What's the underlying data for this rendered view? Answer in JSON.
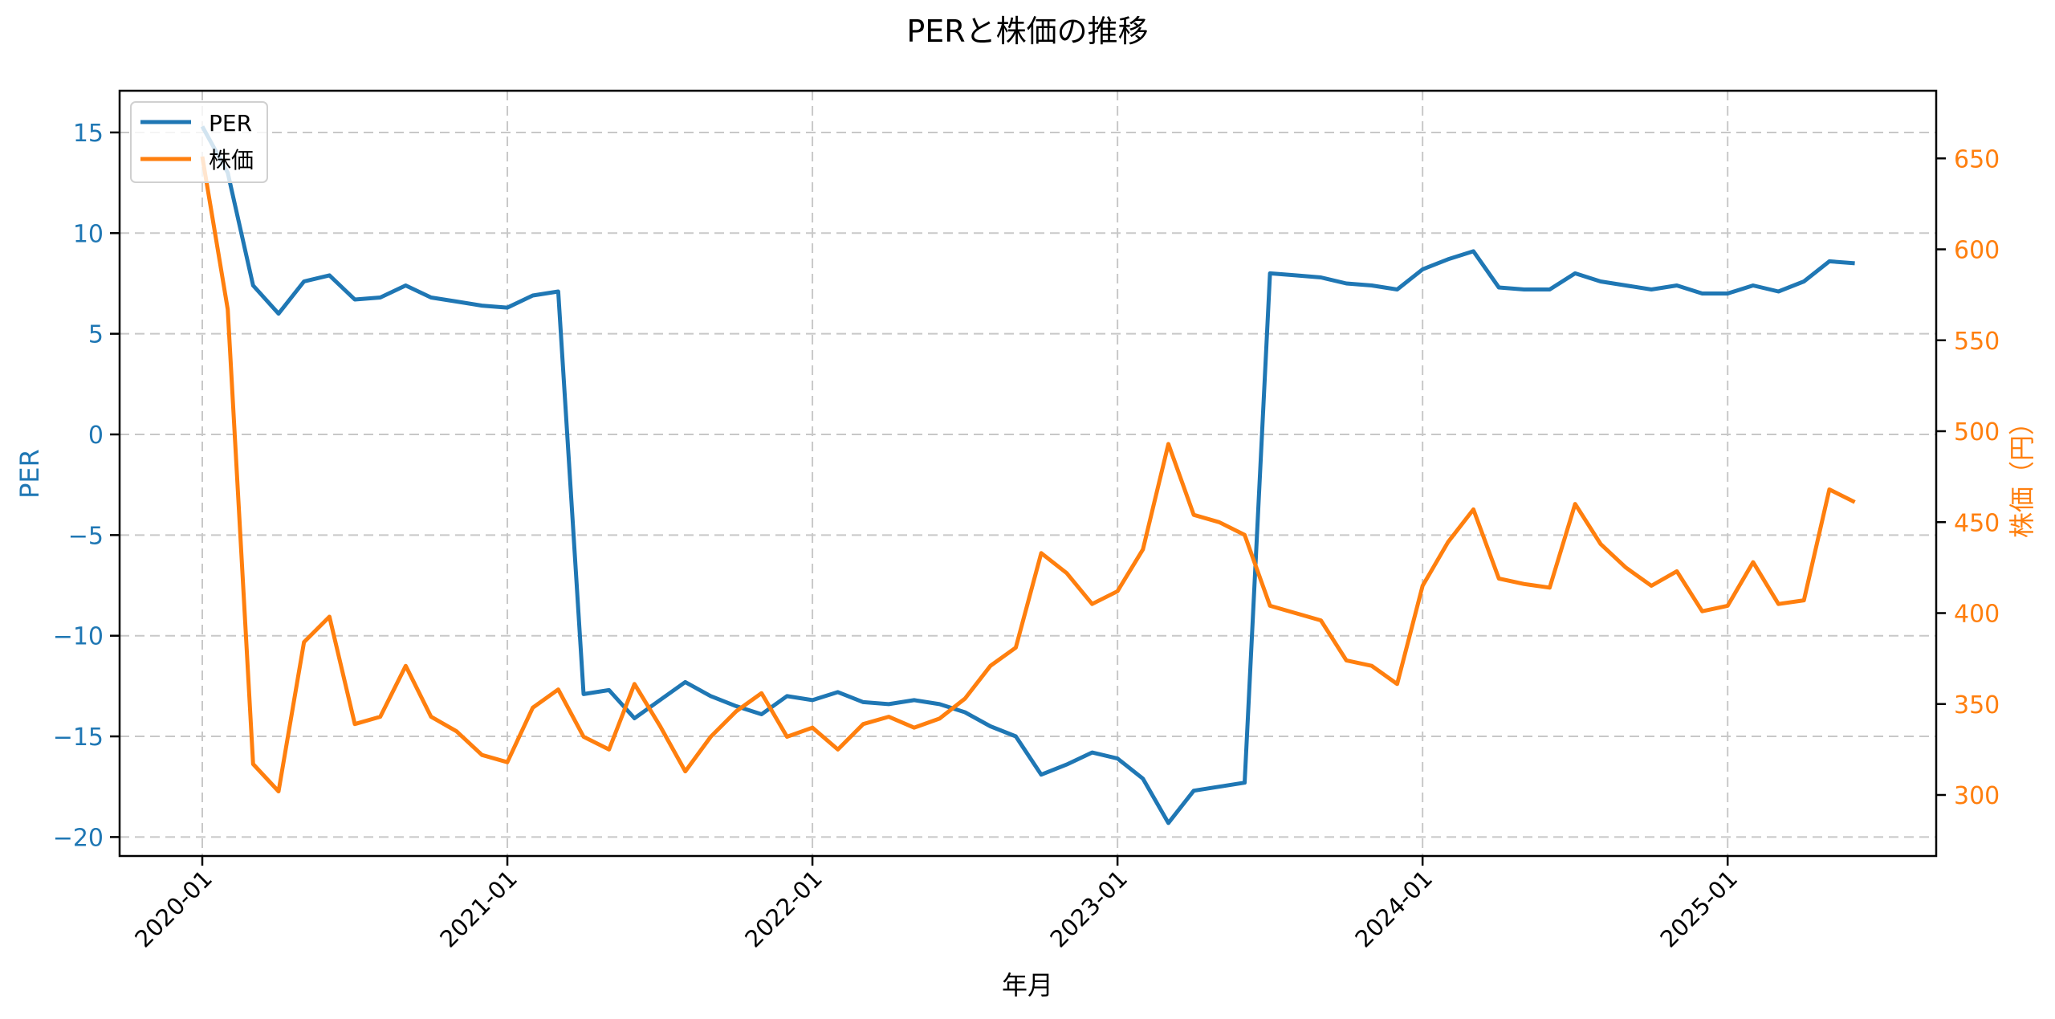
{
  "chart_data": {
    "type": "line",
    "title": "PERと株価の推移",
    "xlabel": "年月",
    "ylabel": "PER",
    "ylabel_right": "株価（円）",
    "ylim": [
      -21,
      17
    ],
    "ylim_right": [
      265,
      685
    ],
    "grid": true,
    "legend_position": "upper left",
    "x_tick_labels": [
      "2020-01",
      "2021-01",
      "2022-01",
      "2023-01",
      "2024-01",
      "2025-01"
    ],
    "y_ticks_left": [
      15,
      10,
      5,
      0,
      -5,
      -10,
      -15,
      -20
    ],
    "y_tick_labels_left": [
      "15",
      "10",
      "5",
      "0",
      "−5",
      "−10",
      "−15",
      "−20"
    ],
    "y_ticks_right": [
      650,
      600,
      550,
      500,
      450,
      400,
      350,
      300
    ],
    "x": [
      "2020-01",
      "2020-02",
      "2020-03",
      "2020-04",
      "2020-05",
      "2020-06",
      "2020-07",
      "2020-08",
      "2020-09",
      "2020-10",
      "2020-11",
      "2020-12",
      "2021-01",
      "2021-02",
      "2021-03",
      "2021-04",
      "2021-05",
      "2021-06",
      "2021-07",
      "2021-08",
      "2021-09",
      "2021-10",
      "2021-11",
      "2021-12",
      "2022-01",
      "2022-02",
      "2022-03",
      "2022-04",
      "2022-05",
      "2022-06",
      "2022-07",
      "2022-08",
      "2022-09",
      "2022-10",
      "2022-11",
      "2022-12",
      "2023-01",
      "2023-02",
      "2023-03",
      "2023-04",
      "2023-05",
      "2023-06",
      "2023-07",
      "2023-08",
      "2023-09",
      "2023-10",
      "2023-11",
      "2023-12",
      "2024-01",
      "2024-02",
      "2024-03",
      "2024-04",
      "2024-05",
      "2024-06",
      "2024-07",
      "2024-08",
      "2024-09",
      "2024-10",
      "2024-11",
      "2024-12",
      "2025-01",
      "2025-02",
      "2025-03",
      "2025-04",
      "2025-05",
      "2025-06"
    ],
    "series": [
      {
        "name": "PER",
        "axis": "left",
        "color": "#1f77b4",
        "values": [
          15.3,
          13.0,
          7.4,
          6.0,
          7.6,
          7.9,
          6.7,
          6.8,
          7.4,
          6.8,
          6.6,
          6.4,
          6.3,
          6.9,
          7.1,
          -12.9,
          -12.7,
          -14.1,
          -13.2,
          -12.3,
          -13.0,
          -13.5,
          -13.9,
          -13.0,
          -13.2,
          -12.8,
          -13.3,
          -13.4,
          -13.2,
          -13.4,
          -13.8,
          -14.5,
          -15.0,
          -16.9,
          -16.4,
          -15.8,
          -16.1,
          -17.1,
          -19.3,
          -17.7,
          -17.5,
          -17.3,
          8.0,
          7.9,
          7.8,
          7.5,
          7.4,
          7.2,
          8.2,
          8.7,
          9.1,
          7.3,
          7.2,
          7.2,
          8.0,
          7.6,
          7.4,
          7.2,
          7.4,
          7.0,
          7.0,
          7.4,
          7.1,
          7.6,
          8.6,
          8.5
        ]
      },
      {
        "name": "株価",
        "axis": "right",
        "color": "#ff7f0e",
        "values": [
          651,
          567,
          317,
          302,
          384,
          398,
          339,
          343,
          371,
          343,
          335,
          322,
          318,
          348,
          358,
          332,
          325,
          361,
          338,
          313,
          332,
          346,
          356,
          332,
          337,
          325,
          339,
          343,
          337,
          342,
          353,
          371,
          381,
          433,
          422,
          405,
          412,
          435,
          493,
          454,
          450,
          443,
          404,
          400,
          396,
          374,
          371,
          361,
          415,
          439,
          457,
          419,
          416,
          414,
          460,
          438,
          425,
          415,
          423,
          401,
          404,
          428,
          405,
          407,
          468,
          461
        ]
      }
    ]
  },
  "legend": {
    "items": [
      {
        "label": "PER",
        "color": "#1f77b4"
      },
      {
        "label": "株価",
        "color": "#ff7f0e"
      }
    ]
  }
}
